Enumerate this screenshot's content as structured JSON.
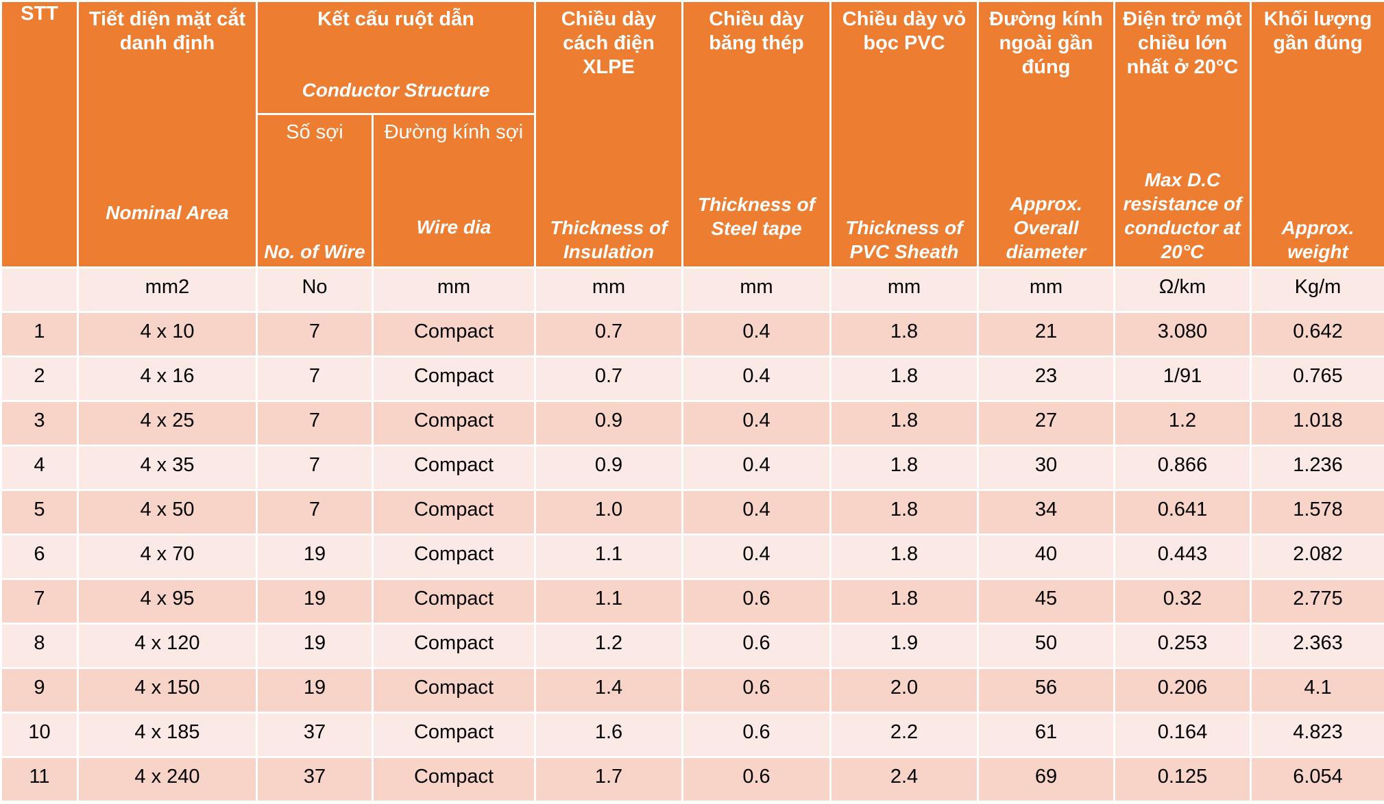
{
  "colors": {
    "header": "#ED7D31",
    "unit_row": "#FBE9E5",
    "band_dark": "#F8D3C8",
    "band_light": "#FBE9E5"
  },
  "header": {
    "stt": "STT",
    "area": {
      "vi": "Tiết diện mặt cắt danh định",
      "en": "Nominal Area"
    },
    "structure": {
      "vi": "Kết cấu ruột dẫn",
      "en": "Conductor Structure"
    },
    "wires": {
      "vi": "Số sợi",
      "en": "No. of Wire"
    },
    "wire_dia": {
      "vi": "Đường kính sợi",
      "en": "Wire dia"
    },
    "insulation": {
      "vi": "Chiều dày cách điện XLPE",
      "en": "Thickness of Insulation"
    },
    "steel_tape": {
      "vi": "Chiều dày băng thép",
      "en": "Thickness of Steel tape"
    },
    "sheath": {
      "vi": "Chiều dày vỏ bọc PVC",
      "en": "Thickness of PVC Sheath"
    },
    "diameter": {
      "vi": "Đường kính ngoài gần đúng",
      "en": "Approx. Overall diameter"
    },
    "resistance": {
      "vi": "Điện trở một chiều lớn nhất ở 20°C",
      "en": "Max D.C resistance of conductor at 20°C"
    },
    "weight": {
      "vi": "Khối lượng gần đúng",
      "en": "Approx. weight"
    }
  },
  "units": [
    "",
    "mm2",
    "No",
    "mm",
    "mm",
    "mm",
    "mm",
    "mm",
    "Ω/km",
    "Kg/m"
  ],
  "rows": [
    [
      "1",
      "4 x 10",
      "7",
      "Compact",
      "0.7",
      "0.4",
      "1.8",
      "21",
      "3.080",
      "0.642"
    ],
    [
      "2",
      "4 x 16",
      "7",
      "Compact",
      "0.7",
      "0.4",
      "1.8",
      "23",
      "1/91",
      "0.765"
    ],
    [
      "3",
      "4 x 25",
      "7",
      "Compact",
      "0.9",
      "0.4",
      "1.8",
      "27",
      "1.2",
      "1.018"
    ],
    [
      "4",
      "4 x 35",
      "7",
      "Compact",
      "0.9",
      "0.4",
      "1.8",
      "30",
      "0.866",
      "1.236"
    ],
    [
      "5",
      "4 x 50",
      "7",
      "Compact",
      "1.0",
      "0.4",
      "1.8",
      "34",
      "0.641",
      "1.578"
    ],
    [
      "6",
      "4 x 70",
      "19",
      "Compact",
      "1.1",
      "0.4",
      "1.8",
      "40",
      "0.443",
      "2.082"
    ],
    [
      "7",
      "4 x 95",
      "19",
      "Compact",
      "1.1",
      "0.6",
      "1.8",
      "45",
      "0.32",
      "2.775"
    ],
    [
      "8",
      "4 x 120",
      "19",
      "Compact",
      "1.2",
      "0.6",
      "1.9",
      "50",
      "0.253",
      "2.363"
    ],
    [
      "9",
      "4 x 150",
      "19",
      "Compact",
      "1.4",
      "0.6",
      "2.0",
      "56",
      "0.206",
      "4.1"
    ],
    [
      "10",
      "4 x 185",
      "37",
      "Compact",
      "1.6",
      "0.6",
      "2.2",
      "61",
      "0.164",
      "4.823"
    ],
    [
      "11",
      "4 x 240",
      "37",
      "Compact",
      "1.7",
      "0.6",
      "2.4",
      "69",
      "0.125",
      "6.054"
    ]
  ]
}
